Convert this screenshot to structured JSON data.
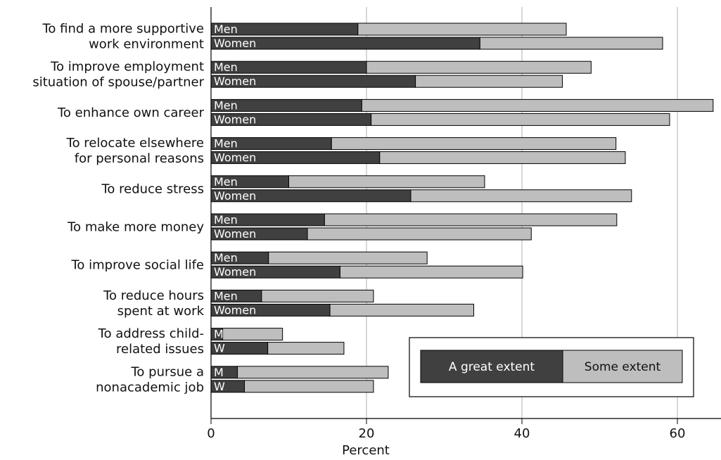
{
  "chart_data": {
    "type": "bar",
    "orientation": "horizontal",
    "stacked": true,
    "title": "",
    "xlabel": "Percent",
    "ylabel": "",
    "xlim": [
      0,
      65
    ],
    "xticks": [
      0,
      20,
      40,
      60
    ],
    "grid": "vertical",
    "legend_position": "bottom-right",
    "categories": [
      "To find a more supportive work environment",
      "To improve employment situation of spouse/partner",
      "To enhance own career",
      "To relocate elsewhere for personal reasons",
      "To reduce stress",
      "To make more money",
      "To improve social life",
      "To reduce hours spent at work",
      "To address child-related issues",
      "To pursue a nonacademic job"
    ],
    "category_label_lines": [
      [
        "To find a more supportive",
        "work environment"
      ],
      [
        "To improve employment",
        "situation of spouse/partner"
      ],
      [
        "To enhance own career"
      ],
      [
        "To relocate elsewhere",
        "for personal reasons"
      ],
      [
        "To reduce stress"
      ],
      [
        "To make more money"
      ],
      [
        "To improve social life"
      ],
      [
        "To reduce hours",
        "spent at work"
      ],
      [
        "To address child-",
        "related issues"
      ],
      [
        "To pursue a",
        "nonacademic job"
      ]
    ],
    "groups": [
      {
        "label": "Men",
        "values": {
          "great": [
            18.9,
            20.0,
            19.4,
            15.5,
            10.0,
            14.6,
            7.4,
            6.5,
            1.5,
            3.4
          ],
          "some": [
            26.8,
            28.9,
            45.2,
            36.6,
            25.2,
            37.6,
            20.4,
            14.4,
            7.7,
            19.4
          ]
        }
      },
      {
        "label": "Women",
        "values": {
          "great": [
            34.6,
            26.3,
            20.6,
            21.7,
            25.7,
            12.4,
            16.6,
            15.3,
            7.3,
            4.3
          ],
          "some": [
            23.5,
            18.9,
            38.4,
            31.6,
            28.4,
            28.8,
            23.5,
            18.5,
            9.8,
            16.6
          ]
        }
      }
    ],
    "group_short_labels": [
      "M",
      "W"
    ],
    "series": [
      {
        "name": "A great extent",
        "color": "#404040"
      },
      {
        "name": "Some extent",
        "color": "#bebebe"
      }
    ]
  }
}
